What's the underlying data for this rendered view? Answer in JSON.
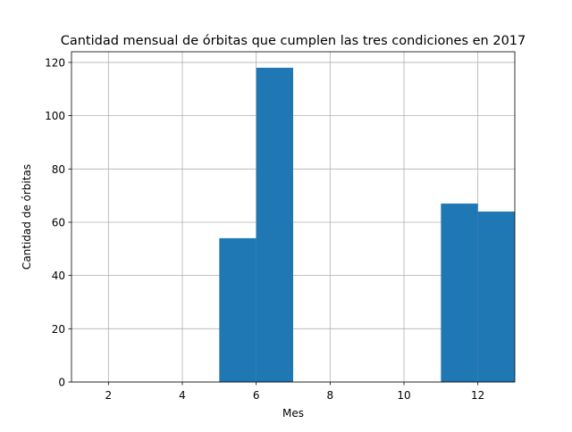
{
  "chart_data": {
    "type": "bar",
    "title": "Cantidad mensual de órbitas que cumplen las tres condiciones en 2017",
    "xlabel": "Mes",
    "ylabel": "Cantidad de órbitas",
    "xlim": [
      1,
      13
    ],
    "ylim": [
      0,
      124
    ],
    "xticks": [
      2,
      4,
      6,
      8,
      10,
      12
    ],
    "yticks": [
      0,
      20,
      40,
      60,
      80,
      100,
      120
    ],
    "grid": true,
    "bins": [
      {
        "x0": 5,
        "x1": 6,
        "value": 54
      },
      {
        "x0": 6,
        "x1": 7,
        "value": 118
      },
      {
        "x0": 11,
        "x1": 12,
        "value": 67
      },
      {
        "x0": 12,
        "x1": 13,
        "value": 64
      }
    ],
    "bar_color": "#1f77b4"
  }
}
